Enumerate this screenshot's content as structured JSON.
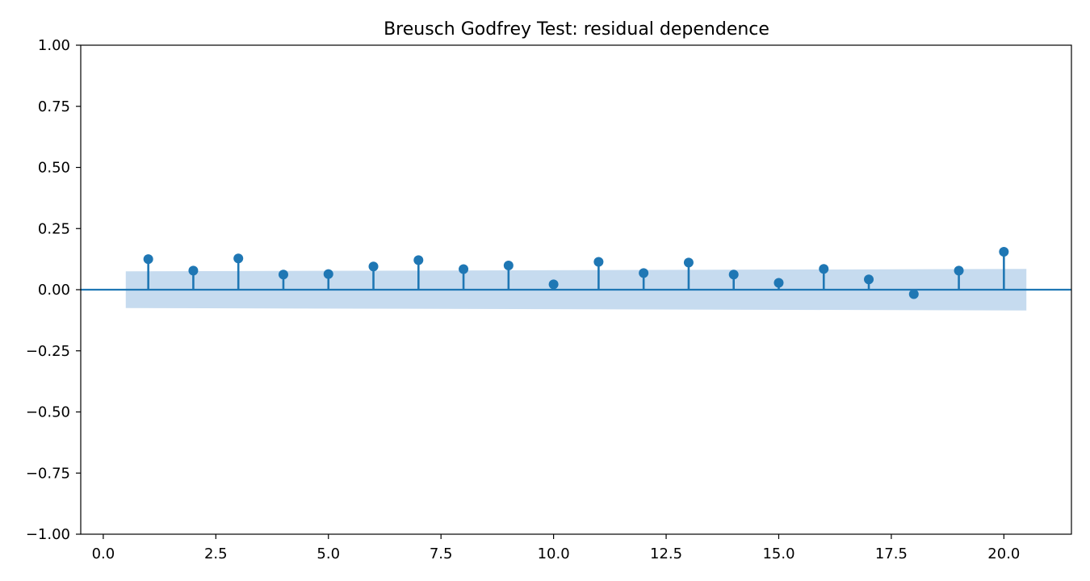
{
  "chart_data": {
    "type": "stem",
    "title": "Breusch Godfrey Test: residual dependence",
    "xlabel": "",
    "ylabel": "",
    "x": [
      1,
      2,
      3,
      4,
      5,
      6,
      7,
      8,
      9,
      10,
      11,
      12,
      13,
      14,
      15,
      16,
      17,
      18,
      19,
      20
    ],
    "values": [
      0.125,
      0.078,
      0.128,
      0.062,
      0.064,
      0.095,
      0.121,
      0.084,
      0.099,
      0.022,
      0.114,
      0.068,
      0.111,
      0.062,
      0.028,
      0.085,
      0.042,
      -0.018,
      0.078,
      0.155
    ],
    "confidence_band": {
      "x": [
        0.5,
        20.5
      ],
      "upper": [
        0.075,
        0.085
      ],
      "lower": [
        -0.075,
        -0.085
      ]
    },
    "xlim": [
      -0.5,
      21.5
    ],
    "ylim": [
      -1.0,
      1.0
    ],
    "x_ticks": [
      0.0,
      2.5,
      5.0,
      7.5,
      10.0,
      12.5,
      15.0,
      17.5,
      20.0
    ],
    "x_tick_labels": [
      "0.0",
      "2.5",
      "5.0",
      "7.5",
      "10.0",
      "12.5",
      "15.0",
      "17.5",
      "20.0"
    ],
    "y_ticks": [
      -1.0,
      -0.75,
      -0.5,
      -0.25,
      0.0,
      0.25,
      0.5,
      0.75,
      1.0
    ],
    "y_tick_labels": [
      "−1.00",
      "−0.75",
      "−0.50",
      "−0.25",
      "0.00",
      "0.25",
      "0.50",
      "0.75",
      "1.00"
    ],
    "zero_line": 0,
    "grid": false,
    "legend": "none",
    "colors": {
      "series": "#1f77b4",
      "band": "#c6dbef",
      "axes": "#000000"
    }
  }
}
